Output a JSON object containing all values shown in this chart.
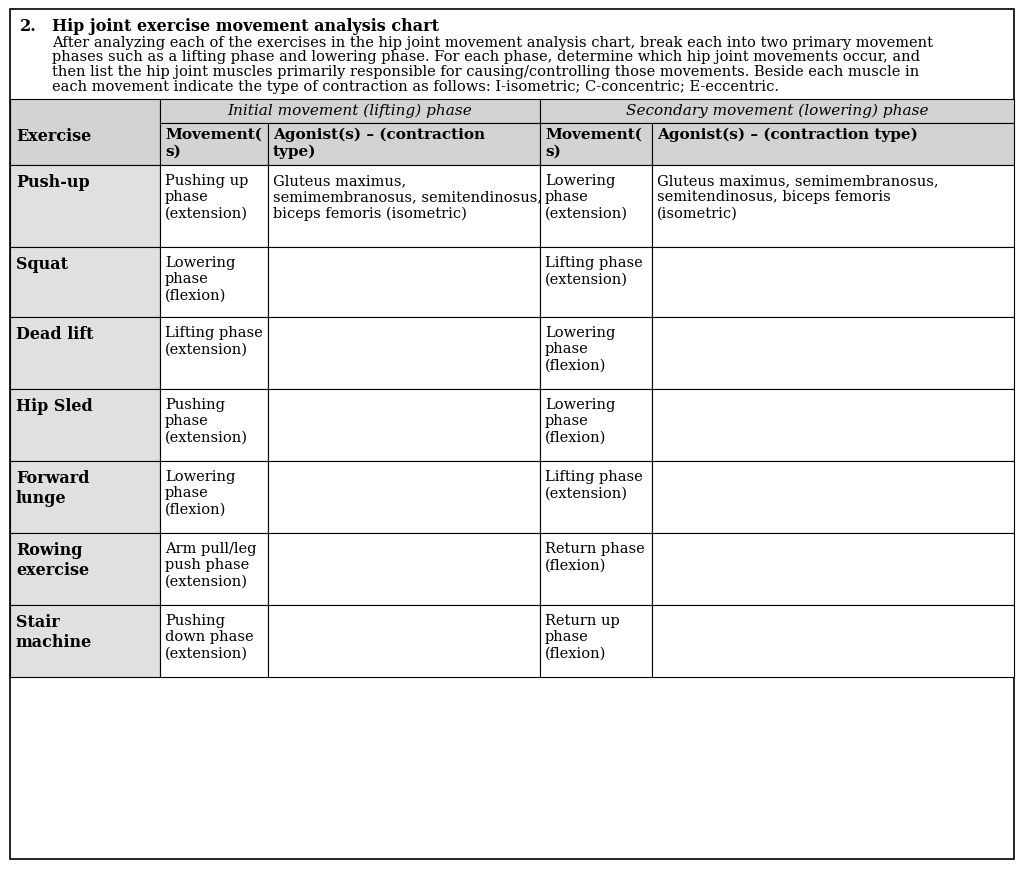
{
  "title_number": "2.",
  "title_bold": "Hip joint exercise movement analysis chart",
  "desc_lines": [
    "After analyzing each of the exercises in the hip joint movement analysis chart, break each into two primary movement",
    "phases such as a lifting phase and lowering phase. For each phase, determine which hip joint movements occur, and",
    "then list the hip joint muscles primarily responsible for causing/controlling those movements. Beside each muscle in",
    "each movement indicate the type of contraction as follows: I-isometric; C-concentric; E-eccentric."
  ],
  "header1": "Initial movement (lifting) phase",
  "header2": "Secondary movement (lowering) phase",
  "rows": [
    {
      "exercise": "Push-up",
      "init_movement": "Pushing up\nphase\n(extension)",
      "init_agonist": "Gluteus maximus,\nsemimembranosus, semitendinosus,\nbiceps femoris (isometric)",
      "sec_movement": "Lowering\nphase\n(extension)",
      "sec_agonist": "Gluteus maximus, semimembranosus,\nsemitendinosus, biceps femoris\n(isometric)"
    },
    {
      "exercise": "Squat",
      "init_movement": "Lowering\nphase\n(flexion)",
      "init_agonist": "",
      "sec_movement": "Lifting phase\n(extension)",
      "sec_agonist": ""
    },
    {
      "exercise": "Dead lift",
      "init_movement": "Lifting phase\n(extension)",
      "init_agonist": "",
      "sec_movement": "Lowering\nphase\n(flexion)",
      "sec_agonist": ""
    },
    {
      "exercise": "Hip Sled",
      "init_movement": "Pushing\nphase\n(extension)",
      "init_agonist": "",
      "sec_movement": "Lowering\nphase\n(flexion)",
      "sec_agonist": ""
    },
    {
      "exercise": "Forward\nlunge",
      "init_movement": "Lowering\nphase\n(flexion)",
      "init_agonist": "",
      "sec_movement": "Lifting phase\n(extension)",
      "sec_agonist": ""
    },
    {
      "exercise": "Rowing\nexercise",
      "init_movement": "Arm pull/leg\npush phase\n(extension)",
      "init_agonist": "",
      "sec_movement": "Return phase\n(flexion)",
      "sec_agonist": ""
    },
    {
      "exercise": "Stair\nmachine",
      "init_movement": "Pushing\ndown phase\n(extension)",
      "init_agonist": "",
      "sec_movement": "Return up\nphase\n(flexion)",
      "sec_agonist": ""
    }
  ],
  "bg_header_color": "#d3d3d3",
  "bg_exercise_col_color": "#e0e0e0",
  "bg_white": "#ffffff",
  "text_color": "#000000",
  "title_fontsize": 11.5,
  "desc_fontsize": 10.5,
  "header_fontsize": 11,
  "cell_fontsize": 10.5,
  "exercise_fontsize": 11.5,
  "fig_width": 10.24,
  "fig_height": 8.7
}
